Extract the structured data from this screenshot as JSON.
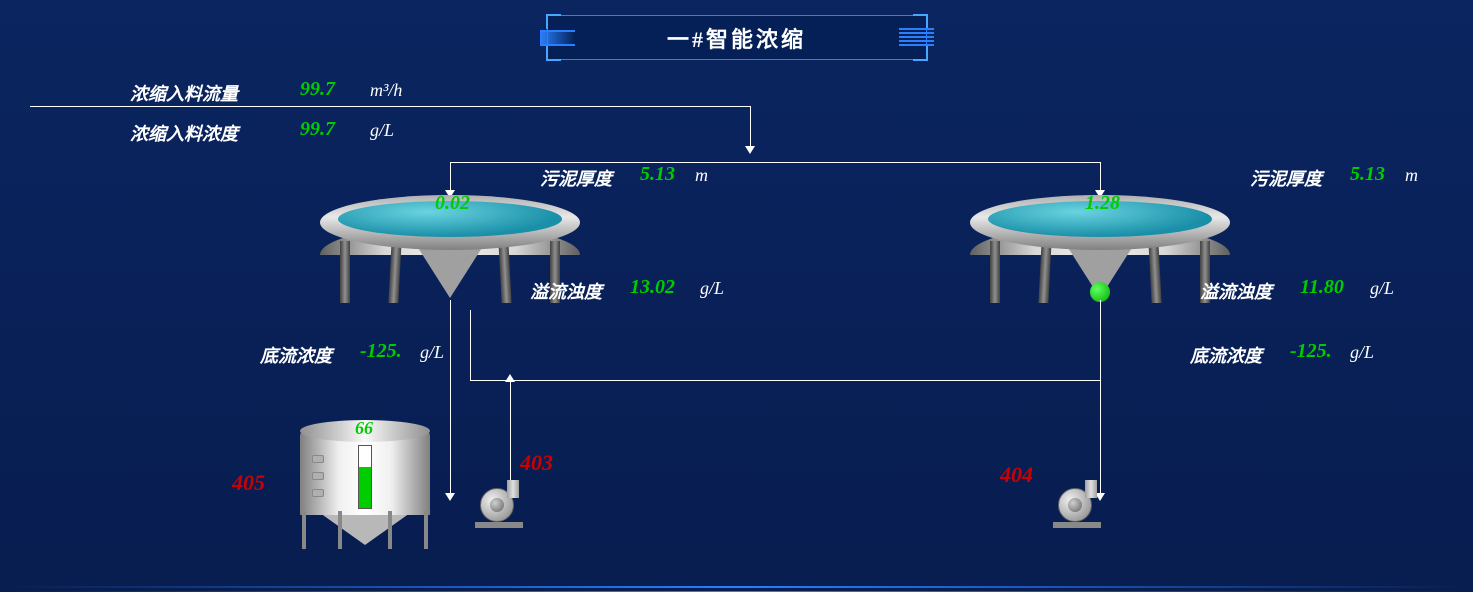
{
  "title": "一#智能浓缩",
  "feed": {
    "flow": {
      "label": "浓缩入料流量",
      "value": "99.7",
      "unit": "m³/h"
    },
    "conc": {
      "label": "浓缩入料浓度",
      "value": "99.7",
      "unit": "g/L"
    }
  },
  "thickener1": {
    "level": "0.02",
    "sludge": {
      "label": "污泥厚度",
      "value": "5.13",
      "unit": "m"
    },
    "overflow": {
      "label": "溢流浊度",
      "value": "13.02",
      "unit": "g/L"
    },
    "underflow": {
      "label": "底流浓度",
      "value": "-125.",
      "unit": "g/L"
    }
  },
  "thickener2": {
    "level": "1.28",
    "sludge": {
      "label": "污泥厚度",
      "value": "5.13",
      "unit": "m"
    },
    "overflow": {
      "label": "溢流浊度",
      "value": "11.80",
      "unit": "g/L"
    },
    "underflow": {
      "label": "底流浓度",
      "value": "-125.",
      "unit": "g/L"
    },
    "status_color": "#00cc00"
  },
  "tank": {
    "id": "405",
    "level": "66",
    "fill_percent": 66
  },
  "pump1": {
    "id": "403"
  },
  "pump2": {
    "id": "404"
  },
  "colors": {
    "bg_top": "#0a2560",
    "bg_bottom": "#081d50",
    "border": "#2a7fff",
    "text": "#ffffff",
    "value_ok": "#00cc00",
    "value_err": "#cc0000"
  }
}
